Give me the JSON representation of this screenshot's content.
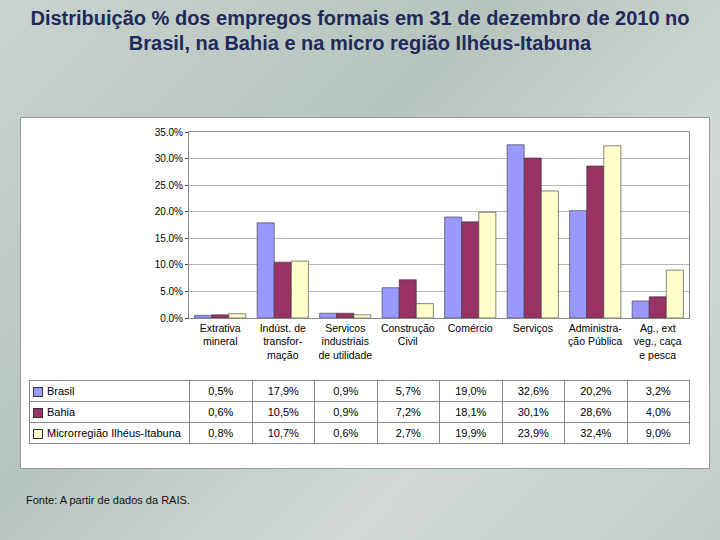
{
  "chart_data": {
    "type": "bar",
    "title": "Distribuição % dos empregos formais em 31 de dezembro de 2010 no Brasil, na Bahia e na micro região Ilhéus-Itabuna",
    "source": "Fonte: A partir de dados da RAIS.",
    "categories": [
      "Extrativa\nmineral",
      "Indúst. de\ntransfor-\nmação",
      "Servicos\nindustriais\nde utilidade",
      "Construção\nCivil",
      "Comércio",
      "Serviços",
      "Administra-\nção Pública",
      "Ag., ext\nveg., caça\ne pesca"
    ],
    "series": [
      {
        "name": "Brasil",
        "color": "#9999ff",
        "values": [
          0.5,
          17.9,
          0.9,
          5.7,
          19.0,
          32.6,
          20.2,
          3.2
        ],
        "value_labels": [
          "0,5%",
          "17,9%",
          "0,9%",
          "5,7%",
          "19,0%",
          "32,6%",
          "20,2%",
          "3,2%"
        ]
      },
      {
        "name": "Bahia",
        "color": "#993366",
        "values": [
          0.6,
          10.5,
          0.9,
          7.2,
          18.1,
          30.1,
          28.6,
          4.0
        ],
        "value_labels": [
          "0,6%",
          "10,5%",
          "0,9%",
          "7,2%",
          "18,1%",
          "30,1%",
          "28,6%",
          "4,0%"
        ]
      },
      {
        "name": "Microrregião Ilhéus-Itabuna",
        "color": "#ffffcc",
        "values": [
          0.8,
          10.7,
          0.6,
          2.7,
          19.9,
          23.9,
          32.4,
          9.0
        ],
        "value_labels": [
          "0,8%",
          "10,7%",
          "0,6%",
          "2,7%",
          "19,9%",
          "23,9%",
          "32,4%",
          "9,0%"
        ]
      }
    ],
    "ylim": [
      0,
      35
    ],
    "yticks": [
      {
        "value": 0,
        "label": "0.0%"
      },
      {
        "value": 5,
        "label": "5.0%"
      },
      {
        "value": 10,
        "label": "10.0%"
      },
      {
        "value": 15,
        "label": "15.0%"
      },
      {
        "value": 20,
        "label": "20.0%"
      },
      {
        "value": 25,
        "label": "25.0%"
      },
      {
        "value": 30,
        "label": "30.0%"
      },
      {
        "value": 35,
        "label": "35.0%"
      }
    ],
    "grid": true
  }
}
